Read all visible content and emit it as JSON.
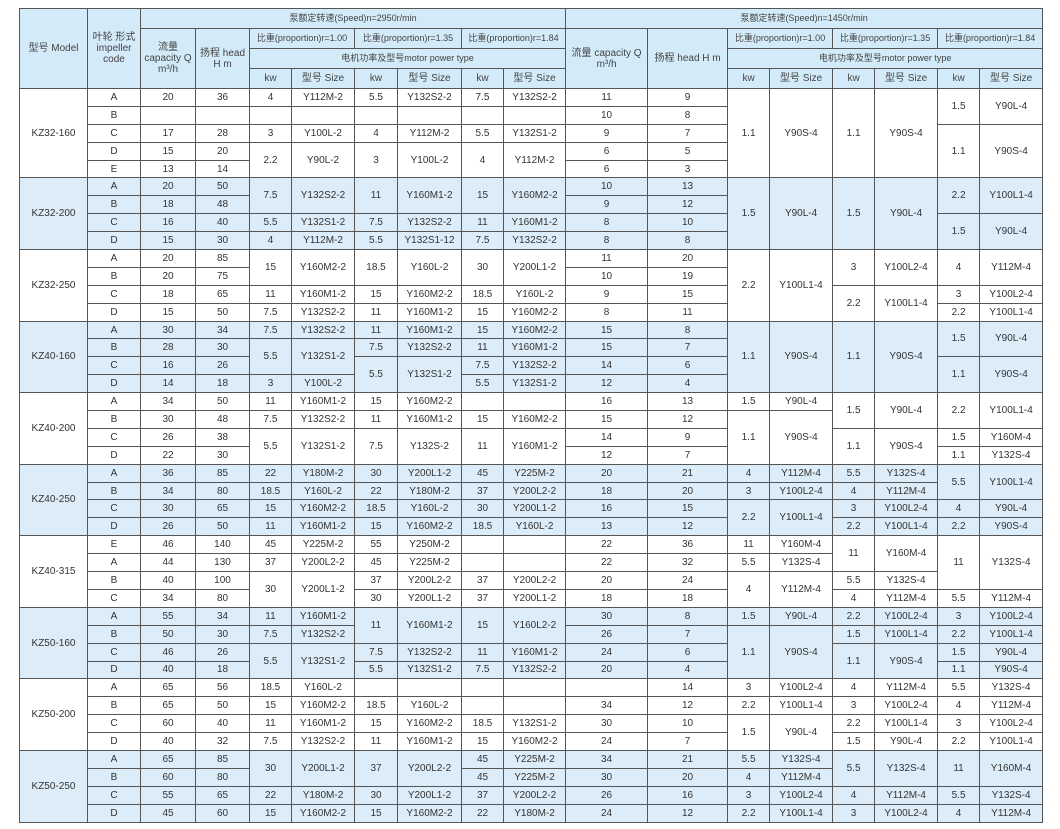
{
  "header": {
    "model": "型号 Model",
    "impeller": "叶轮 形式 impeller code",
    "speed_2950": "泵额定转速(Speed)n=2950r/min",
    "speed_1450": "泵额定转速(Speed)n=1450r/min",
    "capacity": "流量 capacity Q m³/h",
    "head": "扬程 head H m",
    "prop_100": "比重(proportion)r=1.00",
    "prop_135": "比重(proportion)r=1.35",
    "prop_184": "比重(proportion)r=1.84",
    "motor": "电机功率及型号motor power type",
    "kw": "kw",
    "size": "型号 Size"
  },
  "groups": [
    {
      "model": "KZ32-160",
      "rows": [
        [
          "A",
          "20",
          "36",
          "4",
          "Y112M-2",
          "5.5",
          "Y132S2-2",
          "7.5",
          "Y132S2-2",
          "11",
          "9",
          "1.1",
          "Y90S-4",
          "1.1",
          "Y90S-4",
          "1.5",
          "Y90L-4"
        ],
        [
          "B",
          "",
          "",
          "",
          "",
          "",
          "",
          "",
          "",
          "10",
          "8",
          null,
          null,
          null,
          null,
          null,
          null
        ],
        [
          "C",
          "17",
          "28",
          "3",
          "Y100L-2",
          "4",
          "Y112M-2",
          "5.5",
          "Y132S1-2",
          "9",
          "7",
          null,
          null,
          null,
          null,
          "1.1",
          "Y90S-4"
        ],
        [
          "D",
          "15",
          "20",
          "2.2",
          "Y90L-2",
          "3",
          "Y100L-2",
          "4",
          "Y112M-2",
          "6",
          "5",
          null,
          null,
          null,
          null,
          null,
          null
        ],
        [
          "E",
          "13",
          "14",
          null,
          null,
          null,
          null,
          null,
          null,
          "6",
          "3",
          null,
          null,
          null,
          null,
          null,
          null
        ]
      ]
    },
    {
      "model": "KZ32-200",
      "rows": [
        [
          "A",
          "20",
          "50",
          "7.5",
          "Y132S2-2",
          "11",
          "Y160M1-2",
          "15",
          "Y160M2-2",
          "10",
          "13",
          "1.5",
          "Y90L-4",
          "1.5",
          "Y90L-4",
          "2.2",
          "Y100L1-4"
        ],
        [
          "B",
          "18",
          "48",
          null,
          null,
          null,
          null,
          null,
          null,
          "9",
          "12",
          null,
          null,
          null,
          null,
          null,
          null
        ],
        [
          "C",
          "16",
          "40",
          "5.5",
          "Y132S1-2",
          "7.5",
          "Y132S2-2",
          "11",
          "Y160M1-2",
          "8",
          "10",
          null,
          null,
          null,
          null,
          "1.5",
          "Y90L-4"
        ],
        [
          "D",
          "15",
          "30",
          "4",
          "Y112M-2",
          "5.5",
          "Y132S1-12",
          "7.5",
          "Y132S2-2",
          "8",
          "8",
          null,
          null,
          null,
          null,
          null,
          null
        ]
      ]
    },
    {
      "model": "KZ32-250",
      "rows": [
        [
          "A",
          "20",
          "85",
          "15",
          "Y160M2-2",
          "18.5",
          "Y160L-2",
          "30",
          "Y200L1-2",
          "11",
          "20",
          "2.2",
          "Y100L1-4",
          "3",
          "Y100L2-4",
          "4",
          "Y112M-4"
        ],
        [
          "B",
          "20",
          "75",
          null,
          null,
          null,
          null,
          null,
          null,
          "10",
          "19",
          null,
          null,
          null,
          null,
          null,
          null
        ],
        [
          "C",
          "18",
          "65",
          "11",
          "Y160M1-2",
          "15",
          "Y160M2-2",
          "18.5",
          "Y160L-2",
          "9",
          "15",
          null,
          null,
          "2.2",
          "Y100L1-4",
          "3",
          "Y100L2-4"
        ],
        [
          "D",
          "15",
          "50",
          "7.5",
          "Y132S2-2",
          "11",
          "Y160M1-2",
          "15",
          "Y160M2-2",
          "8",
          "11",
          null,
          null,
          null,
          null,
          "2.2",
          "Y100L1-4"
        ]
      ]
    },
    {
      "model": "KZ40-160",
      "rows": [
        [
          "A",
          "30",
          "34",
          "7.5",
          "Y132S2-2",
          "11",
          "Y160M1-2",
          "15",
          "Y160M2-2",
          "15",
          "8",
          "1.1",
          "Y90S-4",
          "1.1",
          "Y90S-4",
          "1.5",
          "Y90L-4"
        ],
        [
          "B",
          "28",
          "30",
          "5.5",
          "Y132S1-2",
          "7.5",
          "Y132S2-2",
          "11",
          "Y160M1-2",
          "15",
          "7",
          null,
          null,
          null,
          null,
          null,
          null
        ],
        [
          "C",
          "16",
          "26",
          null,
          null,
          "5.5",
          "Y132S1-2",
          "7.5",
          "Y132S2-2",
          "14",
          "6",
          null,
          null,
          null,
          null,
          "1.1",
          "Y90S-4"
        ],
        [
          "D",
          "14",
          "18",
          "3",
          "Y100L-2",
          null,
          null,
          "5.5",
          "Y132S1-2",
          "12",
          "4",
          null,
          null,
          null,
          null,
          null,
          null
        ]
      ]
    },
    {
      "model": "KZ40-200",
      "rows": [
        [
          "A",
          "34",
          "50",
          "11",
          "Y160M1-2",
          "15",
          "Y160M2-2",
          "",
          "",
          "16",
          "13",
          "1.5",
          "Y90L-4",
          "1.5",
          "Y90L-4",
          "2.2",
          "Y100L1-4"
        ],
        [
          "B",
          "30",
          "48",
          "7.5",
          "Y132S2-2",
          "11",
          "Y160M1-2",
          "15",
          "Y160M2-2",
          "15",
          "12",
          "1.1",
          "Y90S-4",
          null,
          null,
          null,
          null
        ],
        [
          "C",
          "26",
          "38",
          "5.5",
          "Y132S1-2",
          "7.5",
          "Y132S-2",
          "11",
          "Y160M1-2",
          "14",
          "9",
          null,
          null,
          "1.1",
          "Y90S-4",
          "1.5",
          "Y160M-4"
        ],
        [
          "D",
          "22",
          "30",
          null,
          null,
          null,
          null,
          null,
          null,
          "12",
          "7",
          null,
          null,
          null,
          null,
          "1.1",
          "Y132S-4"
        ]
      ]
    },
    {
      "model": "KZ40-250",
      "rows": [
        [
          "A",
          "36",
          "85",
          "22",
          "Y180M-2",
          "30",
          "Y200L1-2",
          "45",
          "Y225M-2",
          "20",
          "21",
          "4",
          "Y112M-4",
          "5.5",
          "Y132S-4",
          "5.5",
          "Y100L1-4"
        ],
        [
          "B",
          "34",
          "80",
          "18.5",
          "Y160L-2",
          "22",
          "Y180M-2",
          "37",
          "Y200L2-2",
          "18",
          "20",
          "3",
          "Y100L2-4",
          "4",
          "Y112M-4",
          null,
          null
        ],
        [
          "C",
          "30",
          "65",
          "15",
          "Y160M2-2",
          "18.5",
          "Y160L-2",
          "30",
          "Y200L1-2",
          "16",
          "15",
          "2.2",
          "Y100L1-4",
          "3",
          "Y100L2-4",
          "4",
          "Y90L-4"
        ],
        [
          "D",
          "26",
          "50",
          "11",
          "Y160M1-2",
          "15",
          "Y160M2-2",
          "18.5",
          "Y160L-2",
          "13",
          "12",
          null,
          null,
          "2.2",
          "Y100L1-4",
          "2.2",
          "Y90S-4"
        ]
      ]
    },
    {
      "model": "KZ40-315",
      "rows": [
        [
          "E",
          "46",
          "140",
          "45",
          "Y225M-2",
          "55",
          "Y250M-2",
          "",
          "",
          "22",
          "36",
          "11",
          "Y160M-4",
          "11",
          "Y160M-4",
          "11",
          "Y132S-4"
        ],
        [
          "A",
          "44",
          "130",
          "37",
          "Y200L2-2",
          "45",
          "Y225M-2",
          "",
          "",
          "22",
          "32",
          "5.5",
          "Y132S-4",
          null,
          null,
          null,
          null
        ],
        [
          "B",
          "40",
          "100",
          "30",
          "Y200L1-2",
          "37",
          "Y200L2-2",
          "37",
          "Y200L2-2",
          "20",
          "24",
          "4",
          "Y112M-4",
          "5.5",
          "Y132S-4",
          null,
          null
        ],
        [
          "C",
          "34",
          "80",
          null,
          null,
          "30",
          "Y200L1-2",
          "37",
          "Y200L1-2",
          "18",
          "18",
          null,
          null,
          "4",
          "Y112M-4",
          "5.5",
          "Y112M-4"
        ]
      ]
    },
    {
      "model": "KZ50-160",
      "rows": [
        [
          "A",
          "55",
          "34",
          "11",
          "Y160M1-2",
          "11",
          "Y160M1-2",
          "15",
          "Y160L2-2",
          "30",
          "8",
          "1.5",
          "Y90L-4",
          "2.2",
          "Y100L2-4",
          "3",
          "Y100L2-4"
        ],
        [
          "B",
          "50",
          "30",
          "7.5",
          "Y132S2-2",
          null,
          null,
          null,
          null,
          "26",
          "7",
          "1.1",
          "Y90S-4",
          "1.5",
          "Y100L1-4",
          "2.2",
          "Y100L1-4"
        ],
        [
          "C",
          "46",
          "26",
          "5.5",
          "Y132S1-2",
          "7.5",
          "Y132S2-2",
          "11",
          "Y160M1-2",
          "24",
          "6",
          null,
          null,
          "1.1",
          "Y90S-4",
          "1.5",
          "Y90L-4"
        ],
        [
          "D",
          "40",
          "18",
          null,
          null,
          "5.5",
          "Y132S1-2",
          "7.5",
          "Y132S2-2",
          "20",
          "4",
          null,
          null,
          null,
          null,
          "1.1",
          "Y90S-4"
        ]
      ]
    },
    {
      "model": "KZ50-200",
      "rows": [
        [
          "A",
          "65",
          "56",
          "18.5",
          "Y160L-2",
          "",
          "",
          "",
          "",
          "",
          "14",
          "3",
          "Y100L2-4",
          "4",
          "Y112M-4",
          "5.5",
          "Y132S-4"
        ],
        [
          "B",
          "65",
          "50",
          "15",
          "Y160M2-2",
          "18.5",
          "Y160L-2",
          "",
          "",
          "34",
          "12",
          "2.2",
          "Y100L1-4",
          "3",
          "Y100L2-4",
          "4",
          "Y112M-4"
        ],
        [
          "C",
          "60",
          "40",
          "11",
          "Y160M1-2",
          "15",
          "Y160M2-2",
          "18.5",
          "Y132S1-2",
          "30",
          "10",
          "1.5",
          "Y90L-4",
          "2.2",
          "Y100L1-4",
          "3",
          "Y100L2-4"
        ],
        [
          "D",
          "40",
          "32",
          "7.5",
          "Y132S2-2",
          "11",
          "Y160M1-2",
          "15",
          "Y160M2-2",
          "24",
          "7",
          null,
          null,
          "1.5",
          "Y90L-4",
          "2.2",
          "Y100L1-4"
        ]
      ]
    },
    {
      "model": "KZ50-250",
      "rows": [
        [
          "A",
          "65",
          "85",
          "30",
          "Y200L1-2",
          "37",
          "Y200L2-2",
          "45",
          "Y225M-2",
          "34",
          "21",
          "5.5",
          "Y132S-4",
          "5.5",
          "Y132S-4",
          "11",
          "Y160M-4"
        ],
        [
          "B",
          "60",
          "80",
          null,
          null,
          null,
          null,
          "45",
          "Y225M-2",
          "30",
          "20",
          "4",
          "Y112M-4",
          null,
          null,
          null,
          null
        ],
        [
          "C",
          "55",
          "65",
          "22",
          "Y180M-2",
          "30",
          "Y200L1-2",
          "37",
          "Y200L2-2",
          "26",
          "16",
          "3",
          "Y100L2-4",
          "4",
          "Y112M-4",
          "5.5",
          "Y132S-4"
        ],
        [
          "D",
          "45",
          "60",
          "15",
          "Y160M2-2",
          "15",
          "Y160M2-2",
          "22",
          "Y180M-2",
          "24",
          "12",
          "2.2",
          "Y100L1-4",
          "3",
          "Y100L2-4",
          "4",
          "Y112M-4"
        ]
      ]
    }
  ]
}
